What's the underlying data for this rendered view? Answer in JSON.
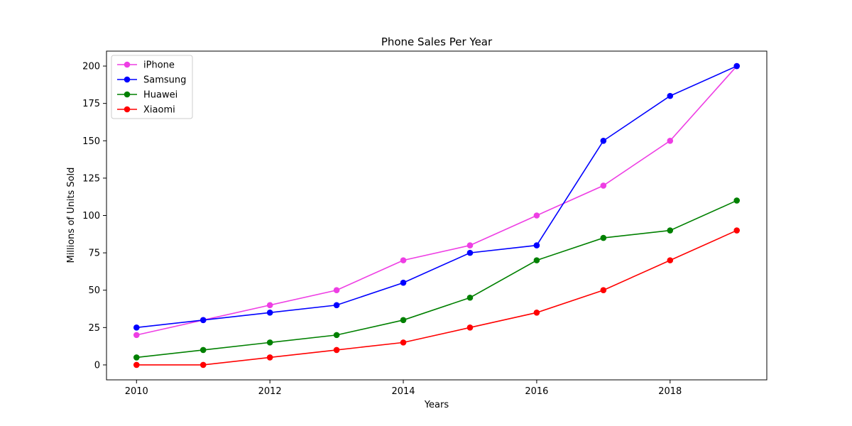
{
  "chart_data": {
    "type": "line",
    "title": "Phone Sales Per Year",
    "xlabel": "Years",
    "ylabel": "Millions of Units Sold",
    "x": [
      2010,
      2011,
      2012,
      2013,
      2014,
      2015,
      2016,
      2017,
      2018,
      2019
    ],
    "x_ticks": [
      2010,
      2012,
      2014,
      2016,
      2018
    ],
    "y_ticks": [
      0,
      25,
      50,
      75,
      100,
      125,
      150,
      175,
      200
    ],
    "xlim": [
      2009.55,
      2019.45
    ],
    "ylim": [
      -10,
      210
    ],
    "grid": false,
    "legend_position": "top-left",
    "series": [
      {
        "name": "iPhone",
        "color": "#ee3ee4",
        "values": [
          20,
          30,
          40,
          50,
          70,
          80,
          100,
          120,
          150,
          200
        ]
      },
      {
        "name": "Samsung",
        "color": "#0000ff",
        "values": [
          25,
          30,
          35,
          40,
          55,
          75,
          80,
          150,
          180,
          200
        ]
      },
      {
        "name": "Huawei",
        "color": "#008000",
        "values": [
          5,
          10,
          15,
          20,
          30,
          45,
          70,
          85,
          90,
          110
        ]
      },
      {
        "name": "Xiaomi",
        "color": "#ff0000",
        "values": [
          0,
          0,
          5,
          10,
          15,
          25,
          35,
          50,
          70,
          90
        ]
      }
    ]
  }
}
